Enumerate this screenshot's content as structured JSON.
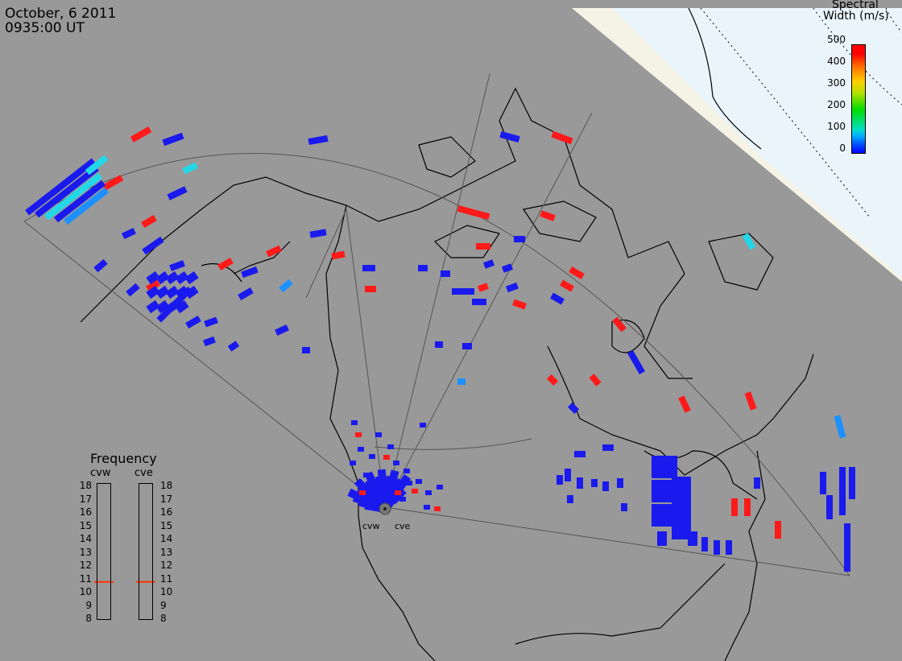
{
  "header": {
    "date": "October, 6 2011",
    "time": "0935:00 UT"
  },
  "colorbar": {
    "title_line1": "Spectral",
    "title_line2": "Width (m/s)",
    "ticks": [
      "500",
      "400",
      "300",
      "200",
      "100",
      "0"
    ],
    "range": [
      0,
      500
    ],
    "colors": [
      "#0000ff",
      "#00b0ff",
      "#00dd00",
      "#ffd000",
      "#ff7000",
      "#ff0000"
    ]
  },
  "frequency_panel": {
    "title": "Frequency",
    "radars": [
      "cvw",
      "cve"
    ],
    "scale": [
      "18",
      "17",
      "16",
      "15",
      "14",
      "13",
      "12",
      "11",
      "10",
      "9",
      "8"
    ],
    "unit_range": [
      8,
      18
    ],
    "markers": [
      {
        "radar": "cvw",
        "value": 10.8
      },
      {
        "radar": "cve",
        "value": 10.8
      }
    ],
    "marker_color": "#ff3300"
  },
  "sites": {
    "west": "cvw",
    "east": "cve"
  },
  "map": {
    "region": "North America polar stereographic",
    "land_color": "#999999",
    "sunlit_color": "#f5f3e6",
    "ocean_light_color": "#eaf5fb",
    "fov_color": "#555555",
    "coast_color": "#000000"
  },
  "scatter_colors": {
    "low": "#1a1aee",
    "cyan": "#22d8e8",
    "mid": "#1e90ff",
    "high": "#ff1a1a"
  }
}
